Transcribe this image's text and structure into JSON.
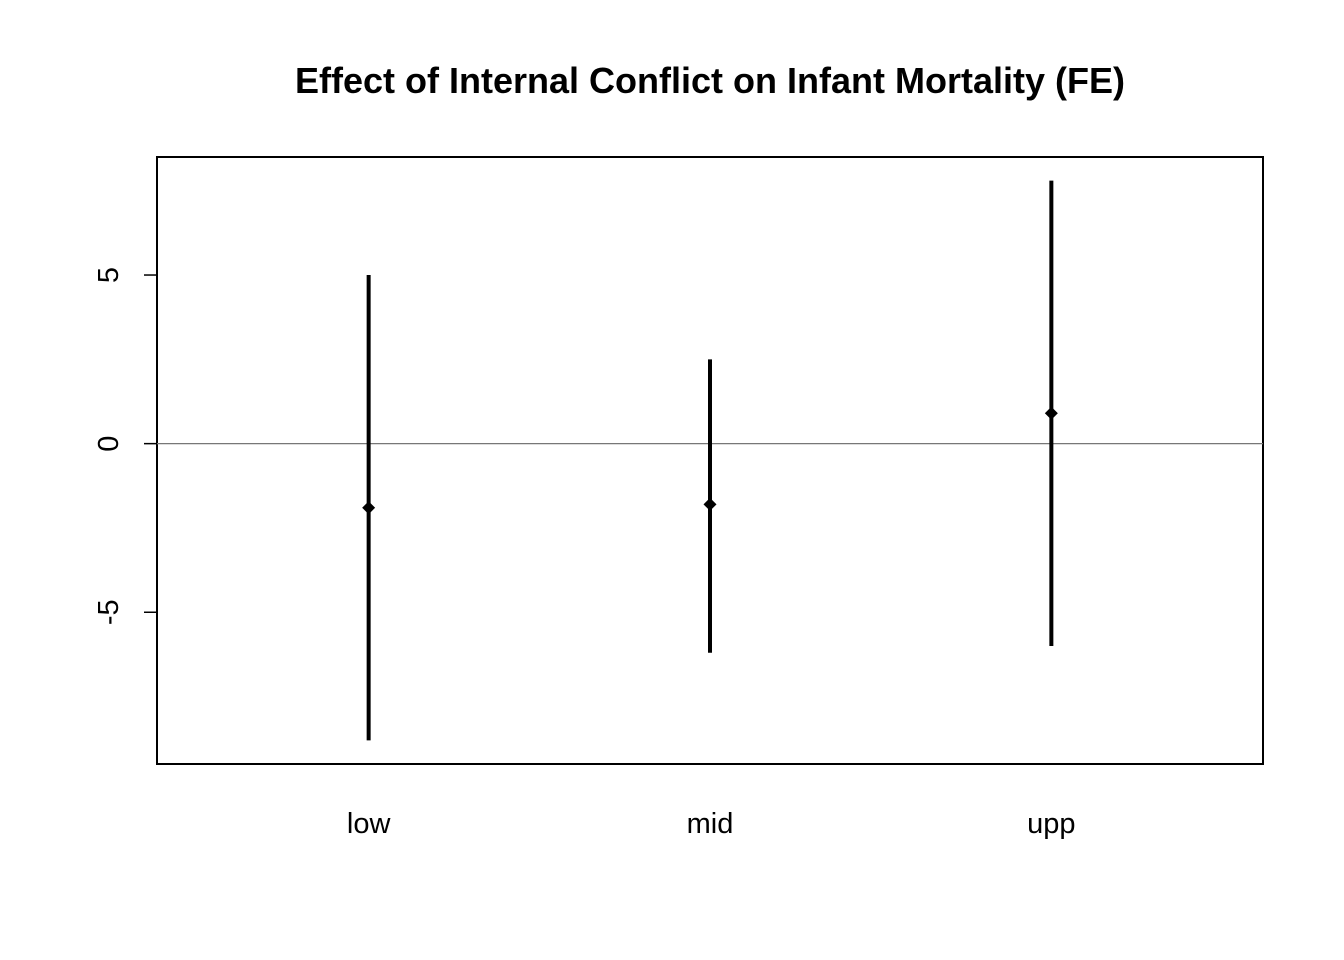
{
  "chart_data": {
    "type": "errorbar",
    "title": "Effect of Internal Conflict on Infant Mortality (FE)",
    "xlabel": "",
    "ylabel": "",
    "categories": [
      "low",
      "mid",
      "upp"
    ],
    "series": [
      {
        "estimates": [
          -1.9,
          -1.8,
          0.9
        ],
        "lower": [
          -8.8,
          -6.2,
          -6.0
        ],
        "upper": [
          5.0,
          2.5,
          7.8
        ]
      }
    ],
    "ylim": [
      -9.5,
      8.5
    ],
    "yticks": [
      -5,
      0,
      5
    ],
    "ytick_labels": [
      "-5",
      "0",
      "5"
    ],
    "reference_line": 0,
    "grid": false,
    "legend": "none",
    "colors": {
      "bars": "#000000",
      "reference_line": "#777777",
      "frame": "#000000"
    }
  }
}
